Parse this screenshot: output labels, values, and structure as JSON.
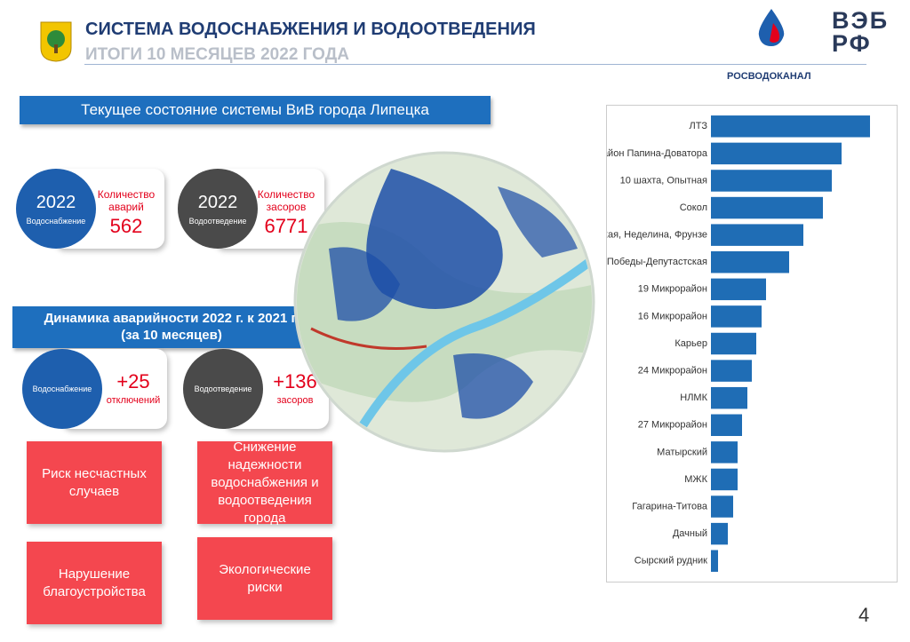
{
  "header": {
    "title": "СИСТЕМА ВОДОСНАБЖЕНИЯ И ВОДООТВЕДЕНИЯ",
    "subtitle": "ИТОГИ 10 МЕСЯЦЕВ 2022 ГОДА",
    "logo_left": "РОСВОДОКАНАЛ",
    "logo_right": [
      "ВЭБ",
      "РФ"
    ]
  },
  "section_current": "Текущее состояние системы ВиВ города Липецка",
  "stats_2022": [
    {
      "year": "2022",
      "service": "Водоснабжение",
      "label": "Количество аварий",
      "value": "562"
    },
    {
      "year": "2022",
      "service": "Водоотведение",
      "label": "Количество засоров",
      "value": "6771"
    }
  ],
  "section_dynamics": [
    "Динамика аварийности 2022 г. к 2021 г.",
    "(за 10 месяцев)"
  ],
  "dynamics": [
    {
      "service": "Водоснабжение",
      "value": "+25",
      "unit": "отключений"
    },
    {
      "service": "Водоотведение",
      "value": "+136",
      "unit": "засоров"
    }
  ],
  "risks": [
    "Риск несчастных случаев",
    "Снижение надежности водоснабжения и водоотведения города",
    "Нарушение благоустройства",
    "Экологические риски"
  ],
  "page_number": "4",
  "chart_data": {
    "type": "barh",
    "color": "#1f6db5",
    "xlim": [
      0,
      180
    ],
    "categories": [
      "ЛТЗ",
      "Район Папина-Доватора",
      "10 шахта, Опытная",
      "Сокол",
      "Советская, Неделина, Фрунзе",
      "Победы-Депутастская",
      "19 Микрорайон",
      "16 Микрорайон",
      "Карьер",
      "24 Микрорайон",
      "НЛМК",
      "27 Микрорайон",
      "Матырский",
      "МЖК",
      "Гагарина-Титова",
      "Дачный",
      "Сырский рудник"
    ],
    "values": [
      179,
      147,
      136,
      126,
      104,
      88,
      62,
      57,
      51,
      46,
      41,
      35,
      30,
      30,
      25,
      19,
      8
    ]
  }
}
